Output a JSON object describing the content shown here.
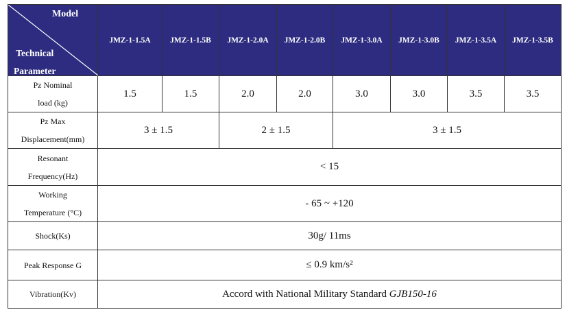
{
  "header": {
    "corner_model": "Model",
    "corner_param_line1": "Technical",
    "corner_param_line2": "Parameter",
    "models": [
      "JMZ-1-1.5A",
      "JMZ-1-1.5B",
      "JMZ-1-2.0A",
      "JMZ-1-2.0B",
      "JMZ-1-3.0A",
      "JMZ-1-3.0B",
      "JMZ-1-3.5A",
      "JMZ-1-3.5B"
    ]
  },
  "rows": {
    "nominal_load": {
      "label_line1": "Pz Nominal",
      "label_line2": "load (kg)",
      "values": [
        "1.5",
        "1.5",
        "2.0",
        "2.0",
        "3.0",
        "3.0",
        "3.5",
        "3.5"
      ]
    },
    "max_displacement": {
      "label_line1": "Pz Max",
      "label_line2": "Displacement(mm)",
      "values": [
        "3 ± 1.5",
        "2 ± 1.5",
        "3 ± 1.5"
      ]
    },
    "resonant_frequency": {
      "label_line1": "Resonant",
      "label_line2": "Frequency(Hz)",
      "value": "< 15"
    },
    "working_temperature": {
      "label_line1": "Working",
      "label_line2": "Temperature (°C)",
      "value": "- 65 ~ +120"
    },
    "shock": {
      "label": "Shock(Ks)",
      "value": "30g/ 11ms"
    },
    "peak_response": {
      "label": "Peak Response G",
      "value": "≤ 0.9 km/s²"
    },
    "vibration": {
      "label": "Vibration(Kv)",
      "value_prefix": "Accord with National Military Standard ",
      "value_standard": "GJB150-16"
    }
  }
}
